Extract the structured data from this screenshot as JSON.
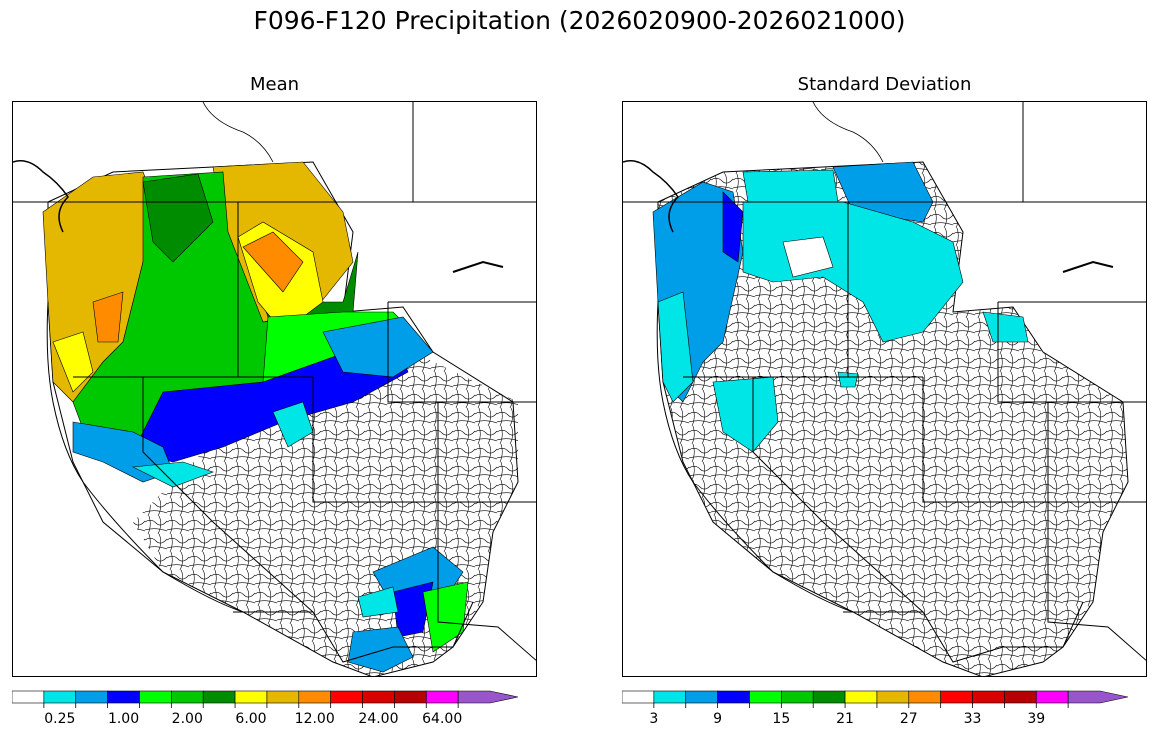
{
  "figure": {
    "title": "F096-F120 Precipitation (2026020900-2026021000)"
  },
  "panels": [
    {
      "title": "Mean",
      "colorbar": {
        "colors": [
          "#ffffff",
          "#00e5e5",
          "#009ee8",
          "#0000ff",
          "#00ff00",
          "#00c800",
          "#008c00",
          "#ffff00",
          "#e5b800",
          "#ff8c00",
          "#ff0000",
          "#d90000",
          "#b80000",
          "#ff00ff",
          "#9955cc"
        ],
        "extend": "max",
        "tick_labels": [
          "0.25",
          "1.00",
          "2.00",
          "6.00",
          "12.00",
          "24.00",
          "64.00"
        ],
        "label_positions": [
          1.5,
          3.5,
          5.5,
          7.5,
          9.5,
          11.5,
          13.5
        ]
      }
    },
    {
      "title": "Standard Deviation",
      "colorbar": {
        "colors": [
          "#ffffff",
          "#00e5e5",
          "#009ee8",
          "#0000ff",
          "#00ff00",
          "#00c800",
          "#008c00",
          "#ffff00",
          "#e5b800",
          "#ff8c00",
          "#ff0000",
          "#d90000",
          "#b80000",
          "#ff00ff",
          "#9955cc"
        ],
        "extend": "max",
        "tick_labels": [
          "3",
          "9",
          "15",
          "21",
          "27",
          "33",
          "39"
        ],
        "label_positions": [
          1,
          3,
          5,
          7,
          9,
          11,
          13
        ]
      }
    }
  ],
  "map": {
    "region": "Western United States",
    "layers": [
      "state boundaries",
      "basin boundaries",
      "coastline"
    ]
  }
}
